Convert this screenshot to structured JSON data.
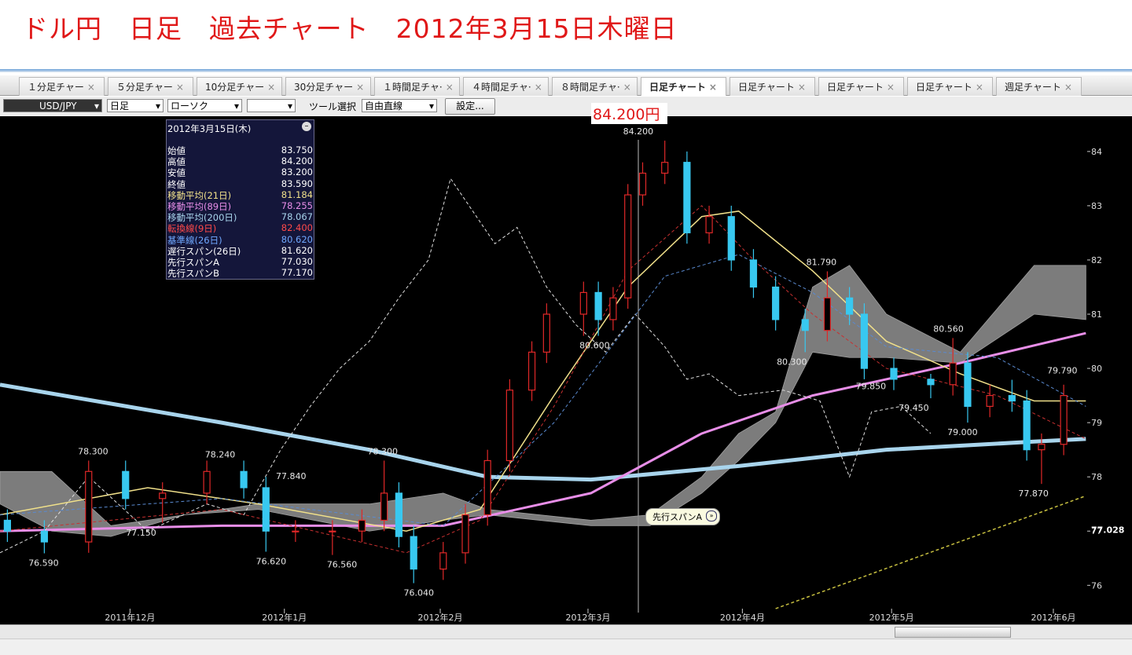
{
  "header": {
    "title": "ドル円　日足　過去チャート　2012年3月15日木曜日"
  },
  "tabs": [
    "１分足チャー",
    "５分足チャー",
    "10分足チャー",
    "30分足チャー",
    "１時間足チャ·",
    "４時間足チャ·",
    "８時間足チャ·",
    "日足チャート",
    "日足チャート",
    "日足チャート",
    "日足チャート",
    "週足チャート"
  ],
  "active_tab": 7,
  "toolbar": {
    "symbol": "USD/JPY",
    "period": "日足",
    "style": "ローソク",
    "tool_label": "ツール選択",
    "tool": "自由直線",
    "settings": "設定..."
  },
  "price_label": "84.200円",
  "tooltip": "先行スパンA",
  "info_panel": {
    "date": "2012年3月15日(木)",
    "rows": [
      {
        "label": "始値",
        "value": "83.750",
        "color": "#ffffff"
      },
      {
        "label": "高値",
        "value": "84.200",
        "color": "#ffffff"
      },
      {
        "label": "安値",
        "value": "83.200",
        "color": "#ffffff"
      },
      {
        "label": "終値",
        "value": "83.590",
        "color": "#ffffff"
      },
      {
        "label": "移動平均(21日)",
        "value": "81.184",
        "color": "#f0e08a"
      },
      {
        "label": "移動平均(89日)",
        "value": "78.255",
        "color": "#e88ee8"
      },
      {
        "label": "移動平均(200日)",
        "value": "78.067",
        "color": "#a8d4ec"
      },
      {
        "label": "転換線(9日)",
        "value": "82.400",
        "color": "#ff4a4a"
      },
      {
        "label": "基準線(26日)",
        "value": "80.620",
        "color": "#70a8ff"
      },
      {
        "label": "遅行スパン(26日)",
        "value": "81.620",
        "color": "#ffffff"
      },
      {
        "label": "先行スパンA",
        "value": "77.030",
        "color": "#ffffff"
      },
      {
        "label": "先行スパンB",
        "value": "77.170",
        "color": "#ffffff"
      }
    ]
  },
  "chart_data": {
    "type": "candlestick",
    "up_color": "#e02828",
    "down_color": "#38c8f0",
    "x": [
      1,
      6,
      12,
      17,
      22,
      28,
      33,
      36,
      40,
      45,
      49,
      52,
      54,
      56,
      60,
      63,
      66,
      69,
      72,
      74,
      79,
      81,
      83,
      85,
      87,
      90,
      93,
      96,
      99,
      102,
      105,
      109,
      112,
      115,
      117,
      121,
      126,
      129,
      131,
      134,
      137,
      139,
      141,
      144
    ],
    "open": [
      77.2,
      77.0,
      76.8,
      78.1,
      77.6,
      77.7,
      78.1,
      77.8,
      77.0,
      77.0,
      77.0,
      77.2,
      77.7,
      76.9,
      76.3,
      76.6,
      77.3,
      78.3,
      79.6,
      80.3,
      81.0,
      81.4,
      80.9,
      81.3,
      83.2,
      83.6,
      83.8,
      82.5,
      82.8,
      82.0,
      81.5,
      80.9,
      80.7,
      81.3,
      81.0,
      80.0,
      79.8,
      79.7,
      80.1,
      79.3,
      79.5,
      79.4,
      78.5,
      78.6
    ],
    "high": [
      77.4,
      77.2,
      78.3,
      78.3,
      77.9,
      78.3,
      78.3,
      78.0,
      77.2,
      77.2,
      77.4,
      78.3,
      77.9,
      77.1,
      76.8,
      77.5,
      78.5,
      79.8,
      80.5,
      81.2,
      81.6,
      81.6,
      81.5,
      83.4,
      83.8,
      84.2,
      84.0,
      83.0,
      83.0,
      82.2,
      81.7,
      81.1,
      81.79,
      81.5,
      81.2,
      80.2,
      79.9,
      80.56,
      80.3,
      79.7,
      79.79,
      79.6,
      78.8,
      79.7
    ],
    "low": [
      76.8,
      76.59,
      76.6,
      77.4,
      77.15,
      77.5,
      77.6,
      76.62,
      76.8,
      76.56,
      76.8,
      77.0,
      76.7,
      76.04,
      76.1,
      76.4,
      77.1,
      78.1,
      79.4,
      80.1,
      80.6,
      80.6,
      80.7,
      81.1,
      83.0,
      83.4,
      82.3,
      82.3,
      81.8,
      81.3,
      80.7,
      80.3,
      80.5,
      80.8,
      79.8,
      79.6,
      79.45,
      79.5,
      79.0,
      79.1,
      79.2,
      78.3,
      77.87,
      78.4
    ],
    "close": [
      77.0,
      76.8,
      78.1,
      77.6,
      77.7,
      78.1,
      77.8,
      77.0,
      77.0,
      77.0,
      77.2,
      77.7,
      76.9,
      76.3,
      76.6,
      77.3,
      78.3,
      79.6,
      80.3,
      81.0,
      81.4,
      80.9,
      81.3,
      83.2,
      83.6,
      83.8,
      82.5,
      82.8,
      82.0,
      81.5,
      80.9,
      80.7,
      81.3,
      81.0,
      80.0,
      79.8,
      79.7,
      80.1,
      79.3,
      79.5,
      79.4,
      78.5,
      78.6,
      79.5
    ],
    "xlim": [
      0,
      147.5
    ],
    "ylim": [
      75.28,
      84.65
    ],
    "yticks": [
      76,
      77,
      78,
      79,
      80,
      81,
      82,
      83,
      84
    ],
    "xticks": [
      {
        "value": 17.6,
        "label": "2011年12月"
      },
      {
        "value": 38.5,
        "label": "2012年1月"
      },
      {
        "value": 59.6,
        "label": "2012年2月"
      },
      {
        "value": 79.6,
        "label": "2012年3月"
      },
      {
        "value": 100.5,
        "label": "2012年4月"
      },
      {
        "value": 120.7,
        "label": "2012年5月"
      },
      {
        "value": 142.6,
        "label": "2012年6月"
      }
    ],
    "last_price": 77.028,
    "cloud": {
      "color": "#8a8a8a",
      "x": [
        0,
        7,
        15,
        25,
        35,
        50,
        60,
        66,
        80,
        88,
        95,
        100,
        105,
        110,
        115,
        120,
        130,
        140,
        147
      ],
      "upper": [
        78.1,
        78.1,
        77.1,
        77.3,
        77.5,
        77.5,
        77.7,
        77.4,
        77.2,
        77.3,
        78.0,
        78.8,
        79.2,
        81.5,
        81.9,
        81.0,
        80.3,
        81.9,
        81.9
      ],
      "lower": [
        77.5,
        77.0,
        76.9,
        77.3,
        77.4,
        77.0,
        77.2,
        77.3,
        77.1,
        77.1,
        77.7,
        78.3,
        79.0,
        80.3,
        80.2,
        80.2,
        80.1,
        81.0,
        80.9
      ]
    },
    "lines": [
      {
        "color": "#a8d4ec",
        "width": 5,
        "dashed": false,
        "x": [
          0,
          30,
          50,
          66,
          80,
          100,
          120,
          140,
          147
        ],
        "values": [
          79.7,
          79.0,
          78.5,
          78.0,
          77.95,
          78.2,
          78.5,
          78.65,
          78.7
        ]
      },
      {
        "color": "#e88ee8",
        "width": 3,
        "dashed": false,
        "x": [
          0,
          30,
          60,
          80,
          95,
          110,
          130,
          147
        ],
        "values": [
          77.0,
          77.1,
          77.1,
          77.7,
          78.8,
          79.5,
          80.1,
          80.65
        ]
      },
      {
        "color": "#f0e08a",
        "width": 1.5,
        "dashed": false,
        "x": [
          0,
          20,
          35,
          55,
          65,
          75,
          85,
          95,
          100,
          110,
          120,
          130,
          140,
          147
        ],
        "values": [
          77.3,
          77.8,
          77.5,
          77.0,
          77.4,
          79.5,
          81.5,
          82.8,
          82.9,
          81.8,
          80.5,
          79.9,
          79.4,
          79.4
        ]
      },
      {
        "color": "#e0e0e0",
        "width": 1,
        "dashed": true,
        "x": [
          0,
          6,
          12,
          20,
          28,
          33,
          38,
          42,
          46,
          50,
          54,
          58,
          61,
          64,
          67,
          70,
          74,
          78,
          82,
          86,
          90,
          93,
          96,
          100,
          106,
          111,
          115,
          118,
          122,
          126
        ],
        "values": [
          76.6,
          77.0,
          78.0,
          77.0,
          77.5,
          77.3,
          78.5,
          79.3,
          80.0,
          80.5,
          81.3,
          82.0,
          83.5,
          82.9,
          82.3,
          82.6,
          81.5,
          80.8,
          80.3,
          81.0,
          80.4,
          79.8,
          79.9,
          79.5,
          79.6,
          79.4,
          78.0,
          79.2,
          79.3,
          78.8
        ]
      },
      {
        "color": "#5a8ad0",
        "width": 1,
        "dashed": true,
        "x": [
          0,
          30,
          60,
          75,
          90,
          100,
          110,
          120,
          135,
          147
        ],
        "values": [
          77.3,
          77.6,
          77.1,
          79.0,
          81.7,
          82.1,
          81.4,
          80.4,
          80.2,
          79.3
        ]
      },
      {
        "color": "#c83030",
        "width": 1,
        "dashed": true,
        "x": [
          0,
          30,
          55,
          65,
          75,
          85,
          95,
          102,
          110,
          120,
          135,
          147
        ],
        "values": [
          77.0,
          77.4,
          76.6,
          77.2,
          79.3,
          81.8,
          83.0,
          82.0,
          81.0,
          80.0,
          79.5,
          78.7
        ]
      },
      {
        "color": "#c8c040",
        "width": 1.5,
        "dashed": true,
        "x": [
          105,
          147
        ],
        "values": [
          75.57,
          77.65
        ]
      }
    ],
    "annotations": [
      {
        "x": 12.6,
        "value": 78.3,
        "label": "78.300"
      },
      {
        "x": 19.1,
        "value": 77.15,
        "label": "77.150"
      },
      {
        "x": 5.9,
        "value": 76.59,
        "label": "76.590"
      },
      {
        "x": 29.8,
        "value": 78.24,
        "label": "78.240"
      },
      {
        "x": 39.4,
        "value": 77.84,
        "label": "77.840"
      },
      {
        "x": 36.7,
        "value": 76.62,
        "label": "76.620"
      },
      {
        "x": 46.3,
        "value": 76.56,
        "label": "76.560"
      },
      {
        "x": 51.8,
        "value": 78.3,
        "label": "78.300"
      },
      {
        "x": 56.7,
        "value": 76.04,
        "label": "76.040"
      },
      {
        "x": 80.5,
        "value": 80.6,
        "label": "80.600"
      },
      {
        "x": 86.4,
        "value": 84.2,
        "label": "84.200"
      },
      {
        "x": 111.2,
        "value": 81.79,
        "label": "81.790"
      },
      {
        "x": 107.2,
        "value": 80.3,
        "label": "80.300"
      },
      {
        "x": 128.4,
        "value": 80.56,
        "label": "80.560"
      },
      {
        "x": 117.9,
        "value": 79.85,
        "label": "79.850"
      },
      {
        "x": 123.7,
        "value": 79.45,
        "label": "79.450"
      },
      {
        "x": 130.3,
        "value": 79.0,
        "label": "79.000"
      },
      {
        "x": 143.8,
        "value": 79.79,
        "label": "79.790"
      },
      {
        "x": 139.9,
        "value": 77.87,
        "label": "77.870"
      }
    ]
  }
}
